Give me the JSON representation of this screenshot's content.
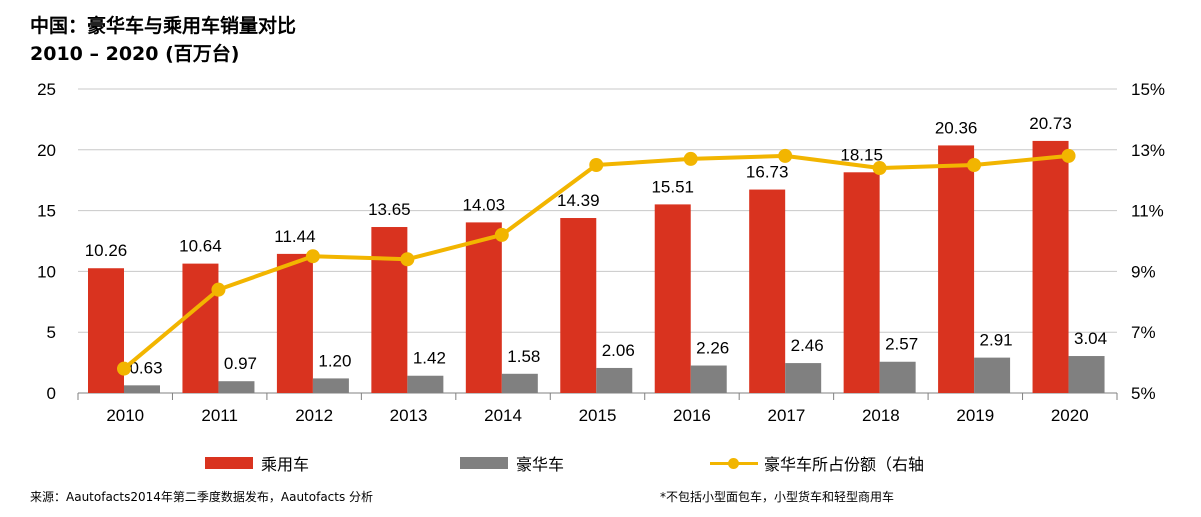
{
  "title_line1": "中国：豪华车与乘用车销量对比",
  "title_line2": "2010 – 2020 (百万台)",
  "source": "来源：Aautofacts2014年第二季度数据发布，Aautofacts 分析",
  "footnote": "*不包括小型面包车，小型货车和轻型商用车",
  "colors": {
    "passenger": "#d9331f",
    "luxury": "#808080",
    "share": "#f2b500"
  },
  "chart_data": {
    "type": "bar",
    "categories": [
      "2010",
      "2011",
      "2012",
      "2013",
      "2014",
      "2015",
      "2016",
      "2017",
      "2018",
      "2019",
      "2020"
    ],
    "series": [
      {
        "name": "乘用车",
        "type": "bar",
        "axis": "left",
        "values": [
          10.26,
          10.64,
          11.44,
          13.65,
          14.03,
          14.39,
          15.51,
          16.73,
          18.15,
          20.36,
          20.73
        ],
        "labels": [
          "10.26",
          "10.64",
          "11.44",
          "13.65",
          "14.03",
          "14.39",
          "15.51",
          "16.73",
          "18.15",
          "20.36",
          "20.73"
        ]
      },
      {
        "name": "豪华车",
        "type": "bar",
        "axis": "left",
        "values": [
          0.63,
          0.97,
          1.2,
          1.42,
          1.58,
          2.06,
          2.26,
          2.46,
          2.57,
          2.91,
          3.04
        ],
        "labels": [
          "0.63",
          "0.97",
          "1.20",
          "1.42",
          "1.58",
          "2.06",
          "2.26",
          "2.46",
          "2.57",
          "2.91",
          "3.04"
        ]
      },
      {
        "name": "豪华车所占份额（右轴",
        "type": "line",
        "axis": "right",
        "values": [
          5.8,
          8.4,
          9.5,
          9.4,
          10.2,
          12.5,
          12.7,
          12.8,
          12.4,
          12.5,
          12.8
        ]
      }
    ],
    "ylim": [
      0,
      25
    ],
    "yticks": [
      "0",
      "5",
      "10",
      "15",
      "20",
      "25"
    ],
    "y2lim": [
      5,
      15
    ],
    "y2ticks": [
      "5%",
      "7%",
      "9%",
      "11%",
      "13%",
      "15%"
    ],
    "grid": true,
    "legend_position": "bottom"
  }
}
